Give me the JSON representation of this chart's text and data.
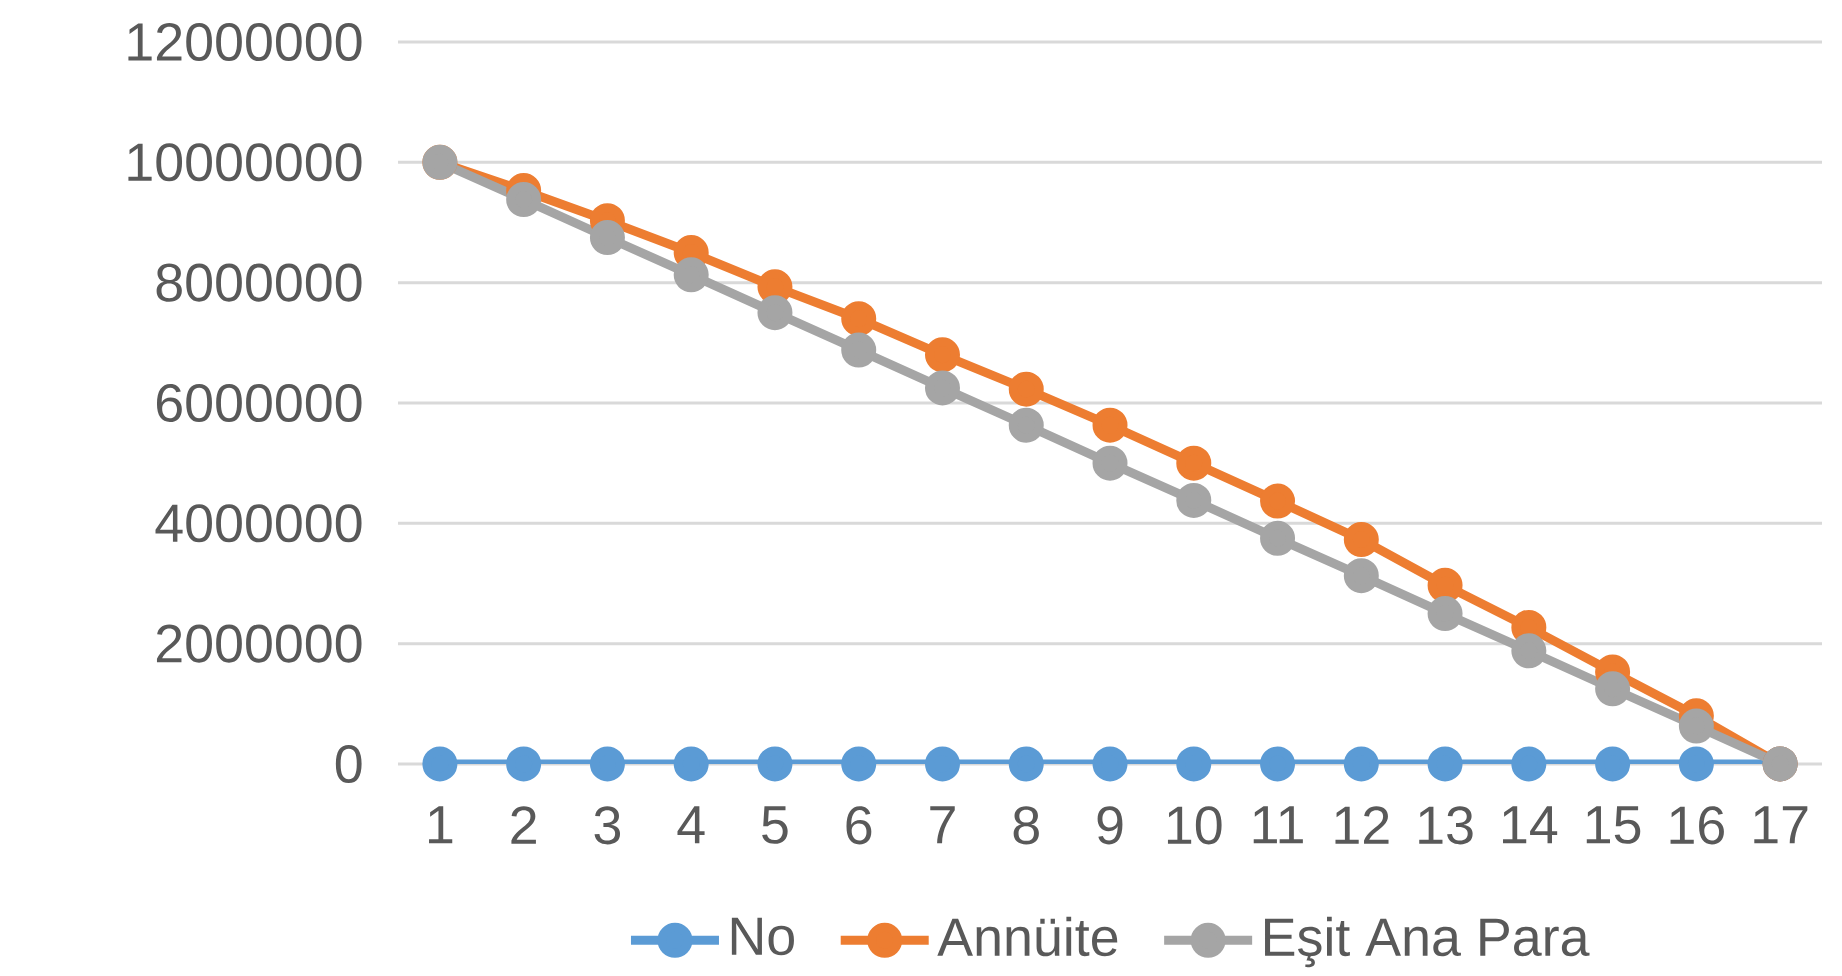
{
  "chart_data": {
    "type": "line",
    "categories": [
      "1",
      "2",
      "3",
      "4",
      "5",
      "6",
      "7",
      "8",
      "9",
      "10",
      "11",
      "12",
      "13",
      "14",
      "15",
      "16",
      "17"
    ],
    "series": [
      {
        "name": "No",
        "color": "#5b9bd5",
        "values": [
          0,
          0,
          0,
          0,
          0,
          0,
          0,
          0,
          0,
          0,
          0,
          0,
          0,
          0,
          0,
          0,
          0
        ]
      },
      {
        "name": "Annüite",
        "color": "#ed7d31",
        "values": [
          10000000,
          9530000,
          9030000,
          8500000,
          7930000,
          7400000,
          6800000,
          6230000,
          5630000,
          5000000,
          4370000,
          3730000,
          2970000,
          2270000,
          1530000,
          800000,
          0
        ]
      },
      {
        "name": "Eşit Ana Para",
        "color": "#a5a5a5",
        "values": [
          10000000,
          9380000,
          8750000,
          8130000,
          7500000,
          6880000,
          6250000,
          5630000,
          5000000,
          4380000,
          3750000,
          3130000,
          2500000,
          1880000,
          1250000,
          630000,
          0
        ]
      }
    ],
    "ylim": [
      0,
      12000000
    ],
    "yticks": [
      0,
      2000000,
      4000000,
      6000000,
      8000000,
      10000000,
      12000000
    ],
    "grid": "y",
    "legend": "bottom",
    "marker": "circle",
    "line_style": "solid"
  }
}
